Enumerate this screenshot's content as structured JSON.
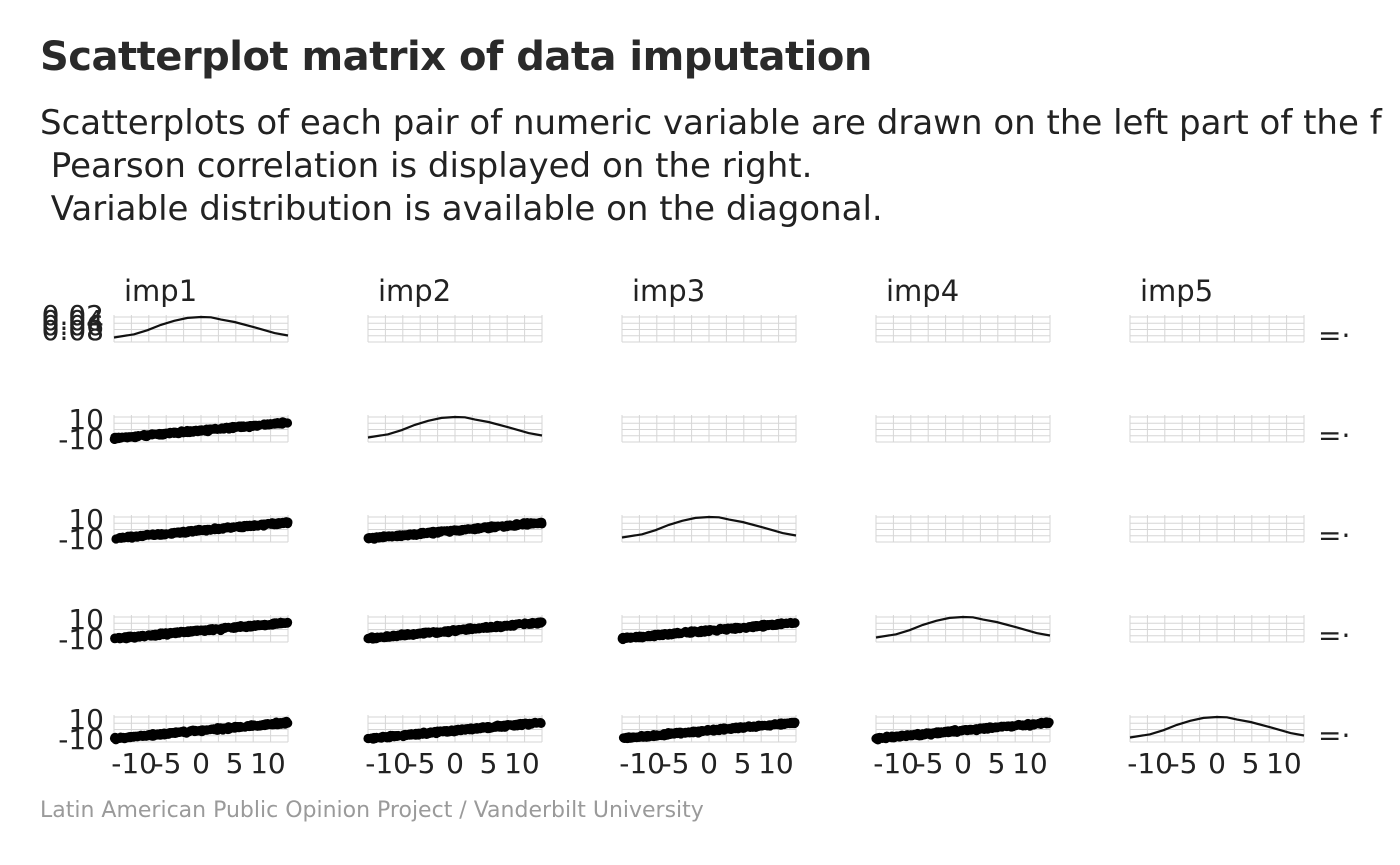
{
  "title": "Scatterplot matrix of data imputation",
  "subtitle_lines": [
    "Scatterplots of each pair of numeric variable are drawn on the left part of the f",
    " Pearson correlation is displayed on the right.",
    " Variable distribution is available on the diagonal."
  ],
  "caption": "Latin American Public Opinion Project / Vanderbilt University",
  "chart_data": {
    "type": "scatter",
    "variables": [
      "imp1",
      "imp2",
      "imp3",
      "imp4",
      "imp5"
    ],
    "lower": "scatter",
    "diagonal": "density",
    "upper": "Pearson correlation",
    "x_range": [
      -13,
      13
    ],
    "x_ticks": [
      "-10",
      "-5",
      "0",
      "5",
      "10"
    ],
    "scatter_y_ticks": [
      "-10",
      "10"
    ],
    "density_y_ticks": [
      "0.02",
      "0.04",
      "0.06",
      "0.08"
    ],
    "density_curve": {
      "x": [
        -13,
        -10,
        -8,
        -6,
        -4,
        -2,
        0,
        1.5,
        3,
        5,
        8,
        11,
        13
      ],
      "y": [
        0.005,
        0.016,
        0.03,
        0.048,
        0.062,
        0.072,
        0.075,
        0.074,
        0.066,
        0.058,
        0.04,
        0.02,
        0.012
      ]
    },
    "scatter_trend": {
      "slope": 0.9,
      "intercept": 0
    },
    "grid": true,
    "legend": "none"
  }
}
